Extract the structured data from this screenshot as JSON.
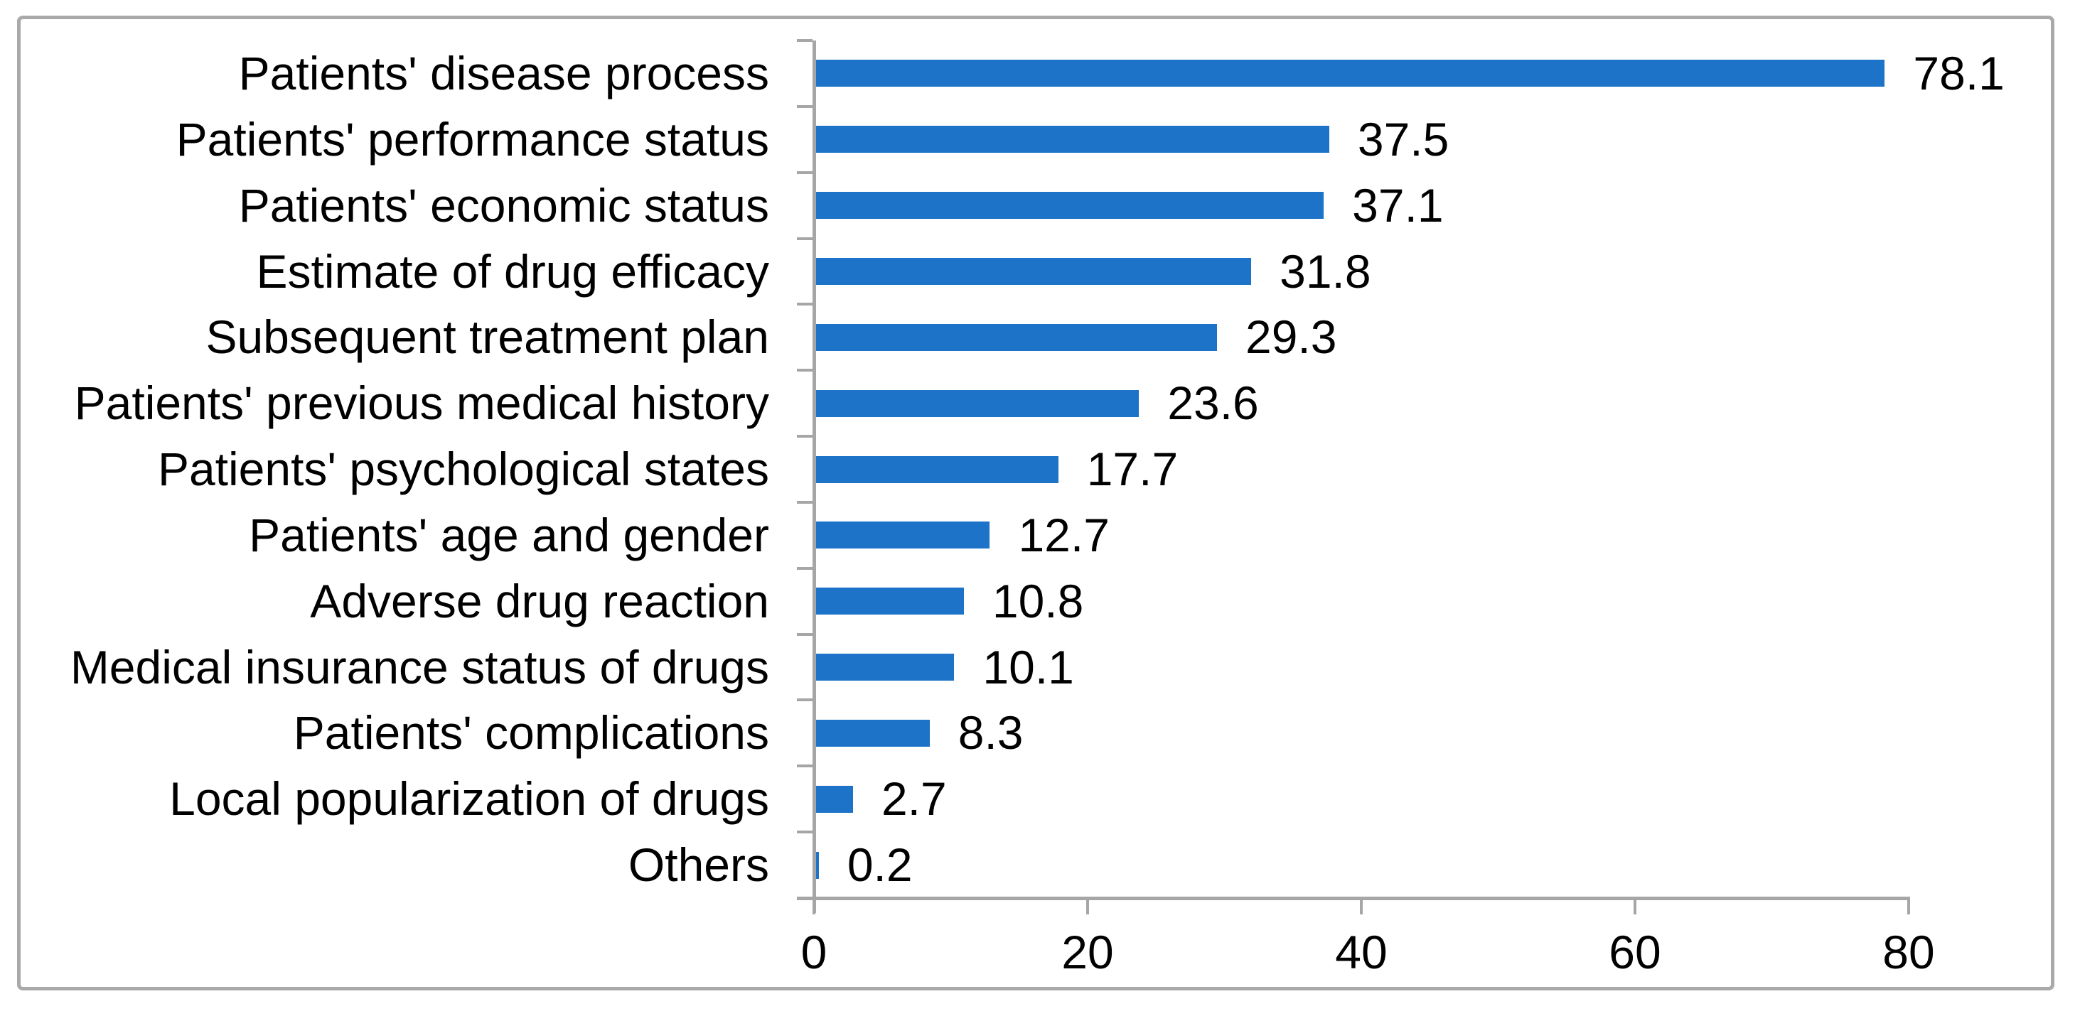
{
  "chart_data": {
    "type": "bar",
    "orientation": "horizontal",
    "title": "",
    "xlabel": "",
    "ylabel": "",
    "categories": [
      "Patients' disease process",
      "Patients' performance status",
      "Patients' economic status",
      "Estimate of drug efficacy",
      "Subsequent treatment plan",
      "Patients' previous medical history",
      "Patients' psychological states",
      "Patients' age and gender",
      "Adverse drug reaction",
      "Medical insurance status of drugs",
      "Patients' complications",
      "Local popularization of drugs",
      "Others"
    ],
    "values": [
      78.1,
      37.5,
      37.1,
      31.8,
      29.3,
      23.6,
      17.7,
      12.7,
      10.8,
      10.1,
      8.3,
      2.7,
      0.2
    ],
    "value_labels": [
      "78.1",
      "37.5",
      "37.1",
      "31.8",
      "29.3",
      "23.6",
      "17.7",
      "12.7",
      "10.8",
      "10.1",
      "8.3",
      "2.7",
      "0.2"
    ],
    "xticks": [
      "0",
      "20",
      "40",
      "60",
      "80"
    ],
    "xtick_values": [
      0,
      20,
      40,
      60,
      80
    ],
    "xlim": [
      0,
      80
    ],
    "grid": false,
    "legend": null,
    "data_labels_shown": true,
    "colors": {
      "bar": "#1c73c8",
      "axis": "#a6a6a6",
      "text": "#000000",
      "frame_border": "#a9a9a9",
      "background": "#ffffff"
    }
  }
}
